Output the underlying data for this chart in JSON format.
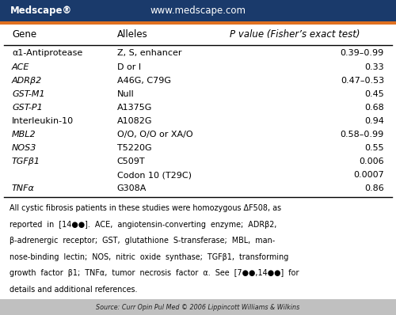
{
  "header_bg": "#1a3a6b",
  "header_text_color": "#ffffff",
  "medscape_text": "Medscape®",
  "url_text": "www.medscape.com",
  "orange_bar_color": "#e07020",
  "col_headers": [
    "Gene",
    "Alleles",
    "P value (Fisher’s exact test)"
  ],
  "rows": [
    {
      "gene": "α1-Antiprotease",
      "gene_italic": false,
      "alleles": "Z, S, enhancer",
      "pvalue": "0.39–0.99"
    },
    {
      "gene": "ACE",
      "gene_italic": true,
      "alleles": "D or I",
      "pvalue": "0.33"
    },
    {
      "gene": "ADRβ2",
      "gene_italic": true,
      "alleles": "A46G, C79G",
      "pvalue": "0.47–0.53"
    },
    {
      "gene": "GST-M1",
      "gene_italic": true,
      "alleles": "Null",
      "pvalue": "0.45"
    },
    {
      "gene": "GST-P1",
      "gene_italic": true,
      "alleles": "A1375G",
      "pvalue": "0.68"
    },
    {
      "gene": "Interleukin-10",
      "gene_italic": false,
      "alleles": "A1082G",
      "pvalue": "0.94"
    },
    {
      "gene": "MBL2",
      "gene_italic": true,
      "alleles": "O/O, O/O or XA/O",
      "pvalue": "0.58–0.99"
    },
    {
      "gene": "NOS3",
      "gene_italic": true,
      "alleles": "T5220G",
      "pvalue": "0.55"
    },
    {
      "gene": "TGFβ1",
      "gene_italic": true,
      "alleles": "C509T",
      "pvalue": "0.006"
    },
    {
      "gene": "",
      "gene_italic": false,
      "alleles": "Codon 10 (T29C)",
      "pvalue": "0.0007"
    },
    {
      "gene": "TNFα",
      "gene_italic": true,
      "alleles": "G308A",
      "pvalue": "0.86"
    }
  ],
  "footnote_lines": [
    "All cystic fibrosis patients in these studies were homozygous ΔF508, as",
    "reported  in  [14●●].  ACE,  angiotensin-converting  enzyme;  ADRβ2,",
    "β-adrenergic  receptor;  GST,  glutathione  S-transferase;  MBL,  man-",
    "nose-binding  lectin;  NOS,  nitric  oxide  synthase;  TGFβ1,  transforming",
    "growth  factor  β1;  TNFα,  tumor  necrosis  factor  α.  See  [7●●,14●●]  for",
    "details and additional references."
  ],
  "source_text": "Source: Curr Opin Pul Med © 2006 Lippincott Williams & Wilkins",
  "source_bg": "#c0c0c0",
  "fig_bg": "#ffffff"
}
